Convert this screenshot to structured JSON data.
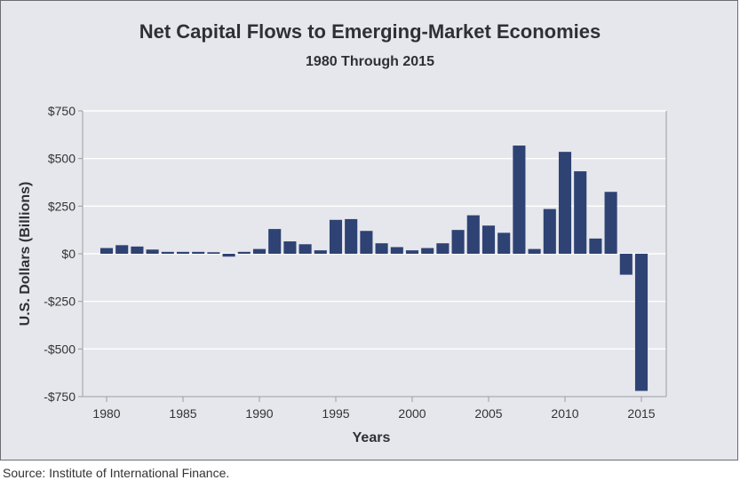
{
  "chart_data": {
    "type": "bar",
    "title": "Net Capital Flows to Emerging-Market Economies",
    "subtitle": "1980 Through 2015",
    "xlabel": "Years",
    "ylabel": "U.S. Dollars (Billions)",
    "ylim": [
      -750,
      750
    ],
    "grid": true,
    "y_ticks": [
      750,
      500,
      250,
      0,
      -250,
      -500,
      -750
    ],
    "y_tick_labels": [
      "$750",
      "$500",
      "$250",
      "$0",
      "-$250",
      "-$500",
      "-$750"
    ],
    "x_ticks": [
      1980,
      1985,
      1990,
      1995,
      2000,
      2005,
      2010,
      2015
    ],
    "x_tick_labels": [
      "1980",
      "1985",
      "1990",
      "1995",
      "2000",
      "2005",
      "2010",
      "2015"
    ],
    "bar_color": "#2e4374",
    "categories": [
      1980,
      1981,
      1982,
      1983,
      1984,
      1985,
      1986,
      1987,
      1988,
      1989,
      1990,
      1991,
      1992,
      1993,
      1994,
      1995,
      1996,
      1997,
      1998,
      1999,
      2000,
      2001,
      2002,
      2003,
      2004,
      2005,
      2006,
      2007,
      2008,
      2009,
      2010,
      2011,
      2012,
      2013,
      2014,
      2015
    ],
    "values": [
      30,
      45,
      38,
      22,
      10,
      10,
      10,
      8,
      -15,
      10,
      25,
      130,
      65,
      50,
      18,
      178,
      182,
      120,
      55,
      35,
      18,
      30,
      55,
      125,
      202,
      148,
      110,
      568,
      25,
      235,
      535,
      433,
      80,
      325,
      -110,
      -720
    ]
  },
  "source": "Source: Institute of International Finance."
}
